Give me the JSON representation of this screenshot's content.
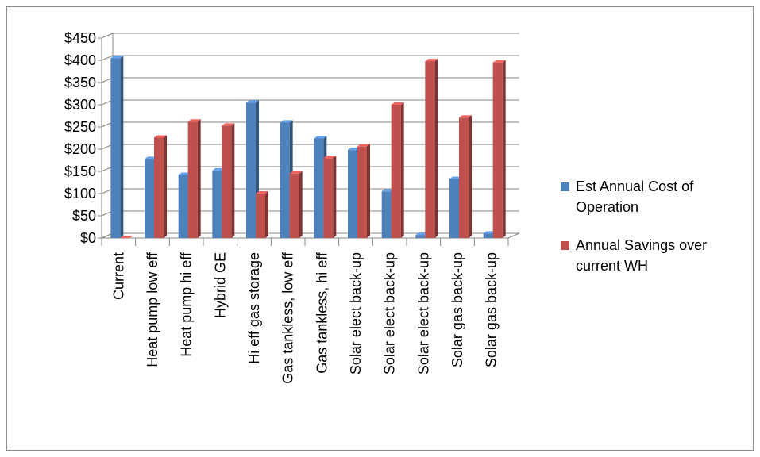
{
  "chart_data": {
    "type": "bar",
    "title": "",
    "xlabel": "",
    "ylabel": "",
    "ylim": [
      0,
      450
    ],
    "yticks": [
      "$0",
      "$50",
      "$100",
      "$150",
      "$200",
      "$250",
      "$300",
      "$350",
      "$400",
      "$450"
    ],
    "categories": [
      "Current",
      "Heat pump low eff",
      "Heat pump hi eff",
      "Hybrid GE",
      "Hi eff gas storage",
      "Gas tankless, low eff",
      "Gas tankless, hi eff",
      "Solar elect back-up",
      "Solar elect back-up",
      "Solar elect back-up",
      "Solar gas back-up",
      "Solar gas back-up"
    ],
    "series": [
      {
        "name": "Est Annual Cost of Operation",
        "color": "#4f81bd",
        "values": [
          405,
          178,
          142,
          152,
          305,
          260,
          224,
          198,
          105,
          7,
          133,
          10
        ]
      },
      {
        "name": "Annual Savings over current WH",
        "color": "#c0504d",
        "values": [
          0,
          226,
          262,
          253,
          100,
          145,
          180,
          206,
          300,
          398,
          271,
          395
        ]
      }
    ],
    "grid": true,
    "legend_position": "right",
    "style": "3d-bar"
  }
}
